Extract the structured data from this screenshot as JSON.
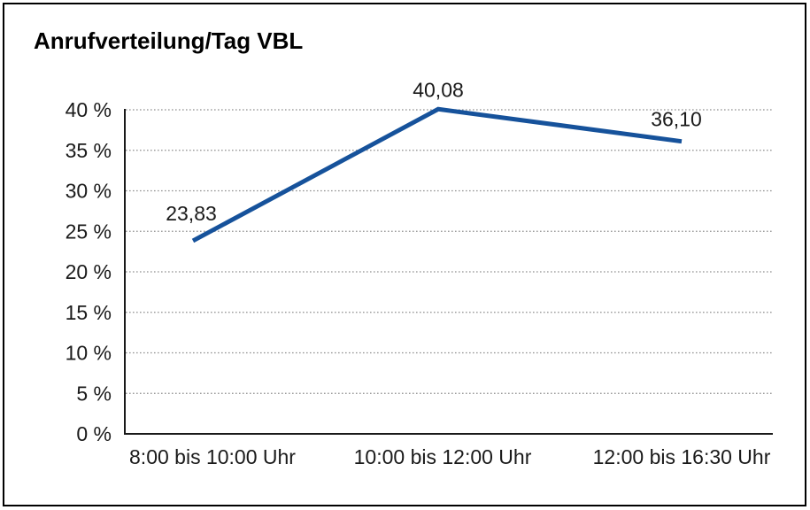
{
  "chart_data": {
    "type": "line",
    "title": "Anrufverteilung/Tag VBL",
    "categories": [
      "8:00 bis 10:00 Uhr",
      "10:00 bis 12:00 Uhr",
      "12:00 bis 16:30 Uhr"
    ],
    "values": [
      23.83,
      40.08,
      36.1
    ],
    "value_labels": [
      "23,83",
      "40,08",
      "36,10"
    ],
    "xlabel": "",
    "ylabel": "",
    "ylim": [
      0,
      40
    ],
    "y_tick_step": 5,
    "y_tick_labels": [
      "0 %",
      "5 %",
      "10 %",
      "15 %",
      "20 %",
      "25 %",
      "30 %",
      "35 %",
      "40 %"
    ],
    "grid": "horizontal-dotted",
    "legend": "none",
    "colors": {
      "line": "#16529B",
      "axis": "#1a1a1a",
      "grid": "#8f8f8f",
      "text": "#1a1a1a",
      "background": "#ffffff",
      "border": "#000000"
    }
  }
}
